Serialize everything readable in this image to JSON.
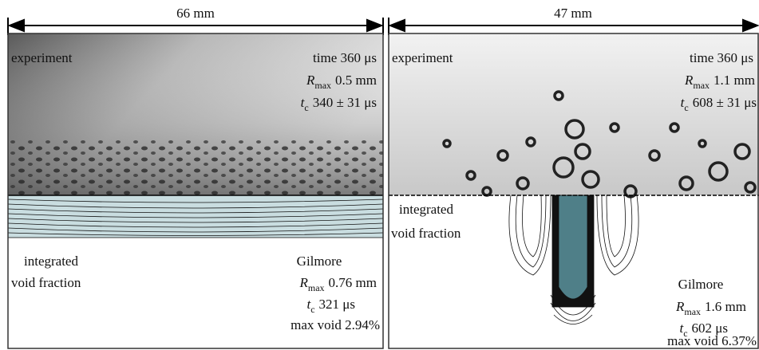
{
  "panels": [
    {
      "width_label": "66 mm",
      "experiment": {
        "label": "experiment",
        "time": "time 360 μs",
        "rmax": {
          "symbol": "R",
          "sub": "max",
          "value": "0.5 mm"
        },
        "tc": {
          "symbol": "t",
          "sub": "c",
          "value": "340 ± 31 μs"
        }
      },
      "model": {
        "label_lines": [
          "integrated",
          "void fraction"
        ],
        "name": "Gilmore",
        "rmax": {
          "symbol": "R",
          "sub": "max",
          "value": "0.76 mm"
        },
        "tc": {
          "symbol": "t",
          "sub": "c",
          "value": "321 μs"
        },
        "max_void": "max void 2.94%"
      }
    },
    {
      "width_label": "47 mm",
      "experiment": {
        "label": "experiment",
        "time": "time 360 μs",
        "rmax": {
          "symbol": "R",
          "sub": "max",
          "value": "1.1 mm"
        },
        "tc": {
          "symbol": "t",
          "sub": "c",
          "value": "608 ± 31 μs"
        }
      },
      "model": {
        "label_lines": [
          "integrated",
          "void fraction"
        ],
        "name": "Gilmore",
        "rmax": {
          "symbol": "R",
          "sub": "max",
          "value": "1.6 mm"
        },
        "tc": {
          "symbol": "t",
          "sub": "c",
          "value": "602 μs"
        },
        "max_void": "max void 6.37%"
      }
    }
  ]
}
